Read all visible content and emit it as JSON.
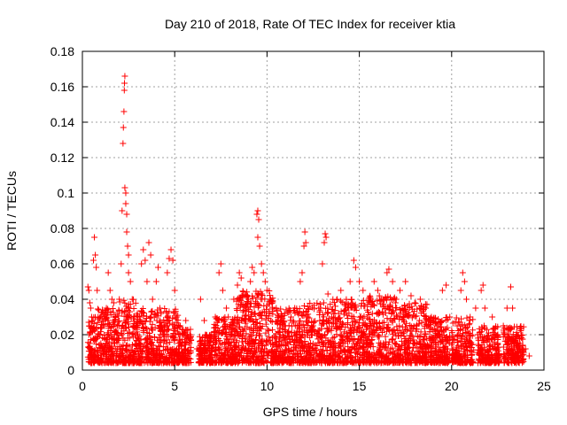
{
  "chart_data": {
    "type": "scatter",
    "title": "Day 210 of 2018, Rate Of TEC Index for receiver ktia",
    "xlabel": "GPS time / hours",
    "ylabel": "ROTI / TECUs",
    "xlim": [
      0,
      25
    ],
    "ylim": [
      0,
      0.18
    ],
    "x_ticks": [
      0,
      5,
      10,
      15,
      20,
      25
    ],
    "y_ticks": [
      0,
      0.02,
      0.04,
      0.06,
      0.08,
      0.1,
      0.12,
      0.14,
      0.16,
      0.18
    ],
    "x_tick_labels": [
      "0",
      "5",
      "10",
      "15",
      "20",
      "25"
    ],
    "y_tick_labels": [
      "0",
      "0.02",
      "0.04",
      "0.06",
      "0.08",
      "0.1",
      "0.12",
      "0.14",
      "0.16",
      "0.18"
    ],
    "grid": true,
    "marker": "+",
    "color": "#ff0000",
    "series": [
      {
        "name": "ROTI",
        "points": [
          [
            0.3,
            0.047
          ],
          [
            0.35,
            0.045
          ],
          [
            0.4,
            0.038
          ],
          [
            0.45,
            0.035
          ],
          [
            0.5,
            0.03
          ],
          [
            0.35,
            0.02
          ],
          [
            0.4,
            0.015
          ],
          [
            0.45,
            0.012
          ],
          [
            0.5,
            0.01
          ],
          [
            0.55,
            0.022
          ],
          [
            0.6,
            0.062
          ],
          [
            0.65,
            0.075
          ],
          [
            0.7,
            0.065
          ],
          [
            0.75,
            0.058
          ],
          [
            0.8,
            0.045
          ],
          [
            0.85,
            0.03
          ],
          [
            0.9,
            0.02
          ],
          [
            1.0,
            0.015
          ],
          [
            1.1,
            0.013
          ],
          [
            1.2,
            0.025
          ],
          [
            1.3,
            0.035
          ],
          [
            1.4,
            0.055
          ],
          [
            1.5,
            0.045
          ],
          [
            1.6,
            0.04
          ],
          [
            1.7,
            0.038
          ],
          [
            1.8,
            0.03
          ],
          [
            1.9,
            0.025
          ],
          [
            2.0,
            0.04
          ],
          [
            2.1,
            0.06
          ],
          [
            2.15,
            0.09
          ],
          [
            2.2,
            0.128
          ],
          [
            2.22,
            0.137
          ],
          [
            2.25,
            0.146
          ],
          [
            2.27,
            0.158
          ],
          [
            2.28,
            0.162
          ],
          [
            2.3,
            0.166
          ],
          [
            2.3,
            0.103
          ],
          [
            2.35,
            0.1
          ],
          [
            2.35,
            0.094
          ],
          [
            2.4,
            0.088
          ],
          [
            2.4,
            0.078
          ],
          [
            2.45,
            0.07
          ],
          [
            2.5,
            0.065
          ],
          [
            2.5,
            0.055
          ],
          [
            2.6,
            0.05
          ],
          [
            2.7,
            0.04
          ],
          [
            2.8,
            0.03
          ],
          [
            2.9,
            0.025
          ],
          [
            3.0,
            0.02
          ],
          [
            3.1,
            0.03
          ],
          [
            3.2,
            0.06
          ],
          [
            3.3,
            0.068
          ],
          [
            3.4,
            0.062
          ],
          [
            3.5,
            0.05
          ],
          [
            3.6,
            0.072
          ],
          [
            3.7,
            0.065
          ],
          [
            3.8,
            0.04
          ],
          [
            3.9,
            0.03
          ],
          [
            4.0,
            0.05
          ],
          [
            4.1,
            0.058
          ],
          [
            4.2,
            0.035
          ],
          [
            4.3,
            0.025
          ],
          [
            4.4,
            0.02
          ],
          [
            4.6,
            0.055
          ],
          [
            4.7,
            0.063
          ],
          [
            4.8,
            0.068
          ],
          [
            4.9,
            0.062
          ],
          [
            5.0,
            0.045
          ],
          [
            5.1,
            0.03
          ],
          [
            5.3,
            0.025
          ],
          [
            5.5,
            0.02
          ],
          [
            5.6,
            0.028
          ],
          [
            5.8,
            0.015
          ],
          [
            6.2,
            0.012
          ],
          [
            6.4,
            0.04
          ],
          [
            6.6,
            0.028
          ],
          [
            6.8,
            0.015
          ],
          [
            7.0,
            0.02
          ],
          [
            7.2,
            0.03
          ],
          [
            7.4,
            0.055
          ],
          [
            7.5,
            0.06
          ],
          [
            7.6,
            0.045
          ],
          [
            7.8,
            0.035
          ],
          [
            8.0,
            0.025
          ],
          [
            8.2,
            0.04
          ],
          [
            8.4,
            0.048
          ],
          [
            8.5,
            0.055
          ],
          [
            8.6,
            0.052
          ],
          [
            8.8,
            0.042
          ],
          [
            9.0,
            0.04
          ],
          [
            9.1,
            0.05
          ],
          [
            9.2,
            0.058
          ],
          [
            9.3,
            0.055
          ],
          [
            9.45,
            0.088
          ],
          [
            9.5,
            0.09
          ],
          [
            9.55,
            0.085
          ],
          [
            9.5,
            0.075
          ],
          [
            9.6,
            0.07
          ],
          [
            9.7,
            0.06
          ],
          [
            9.8,
            0.055
          ],
          [
            9.9,
            0.05
          ],
          [
            10.0,
            0.045
          ],
          [
            10.2,
            0.04
          ],
          [
            10.5,
            0.035
          ],
          [
            10.8,
            0.03
          ],
          [
            11.0,
            0.025
          ],
          [
            11.3,
            0.03
          ],
          [
            11.5,
            0.035
          ],
          [
            11.8,
            0.05
          ],
          [
            11.9,
            0.055
          ],
          [
            12.0,
            0.07
          ],
          [
            12.05,
            0.078
          ],
          [
            12.1,
            0.072
          ],
          [
            12.2,
            0.03
          ],
          [
            12.5,
            0.025
          ],
          [
            12.8,
            0.035
          ],
          [
            13.0,
            0.06
          ],
          [
            13.1,
            0.072
          ],
          [
            13.15,
            0.077
          ],
          [
            13.2,
            0.075
          ],
          [
            13.3,
            0.043
          ],
          [
            13.5,
            0.03
          ],
          [
            13.8,
            0.04
          ],
          [
            14.0,
            0.045
          ],
          [
            14.3,
            0.038
          ],
          [
            14.5,
            0.05
          ],
          [
            14.7,
            0.062
          ],
          [
            14.8,
            0.058
          ],
          [
            15.0,
            0.05
          ],
          [
            15.2,
            0.045
          ],
          [
            15.5,
            0.04
          ],
          [
            15.8,
            0.05
          ],
          [
            16.0,
            0.045
          ],
          [
            16.3,
            0.04
          ],
          [
            16.5,
            0.055
          ],
          [
            16.6,
            0.057
          ],
          [
            16.8,
            0.05
          ],
          [
            17.0,
            0.04
          ],
          [
            17.2,
            0.045
          ],
          [
            17.5,
            0.05
          ],
          [
            17.8,
            0.042
          ],
          [
            18.0,
            0.038
          ],
          [
            18.3,
            0.04
          ],
          [
            18.6,
            0.035
          ],
          [
            18.9,
            0.03
          ],
          [
            19.2,
            0.025
          ],
          [
            19.5,
            0.045
          ],
          [
            19.7,
            0.048
          ],
          [
            19.9,
            0.03
          ],
          [
            20.3,
            0.025
          ],
          [
            20.5,
            0.045
          ],
          [
            20.6,
            0.055
          ],
          [
            20.7,
            0.05
          ],
          [
            20.8,
            0.04
          ],
          [
            21.0,
            0.03
          ],
          [
            21.3,
            0.035
          ],
          [
            21.6,
            0.045
          ],
          [
            21.7,
            0.048
          ],
          [
            21.8,
            0.035
          ],
          [
            22.2,
            0.03
          ],
          [
            22.5,
            0.02
          ],
          [
            22.8,
            0.025
          ],
          [
            23.0,
            0.035
          ],
          [
            23.2,
            0.047
          ],
          [
            23.3,
            0.035
          ],
          [
            23.5,
            0.02
          ],
          [
            23.7,
            0.015
          ],
          [
            23.9,
            0.01
          ],
          [
            24.0,
            0.012
          ],
          [
            24.2,
            0.008
          ]
        ]
      }
    ],
    "background_cluster": {
      "description_hidden": true,
      "bands": [
        [
          0.3,
          0.8,
          0.03
        ],
        [
          0.8,
          1.6,
          0.035
        ],
        [
          1.6,
          2.9,
          0.04
        ],
        [
          2.9,
          4.3,
          0.035
        ],
        [
          4.3,
          5.2,
          0.035
        ],
        [
          5.2,
          5.9,
          0.025
        ],
        [
          6.3,
          7.1,
          0.02
        ],
        [
          7.1,
          8.3,
          0.03
        ],
        [
          8.3,
          10.4,
          0.045
        ],
        [
          10.4,
          11.9,
          0.035
        ],
        [
          11.9,
          13.5,
          0.038
        ],
        [
          13.5,
          15.5,
          0.04
        ],
        [
          15.5,
          17.2,
          0.042
        ],
        [
          17.2,
          18.7,
          0.038
        ],
        [
          18.7,
          19.9,
          0.03
        ],
        [
          20.0,
          21.2,
          0.03
        ],
        [
          21.4,
          22.6,
          0.025
        ],
        [
          22.8,
          23.9,
          0.025
        ]
      ]
    }
  }
}
